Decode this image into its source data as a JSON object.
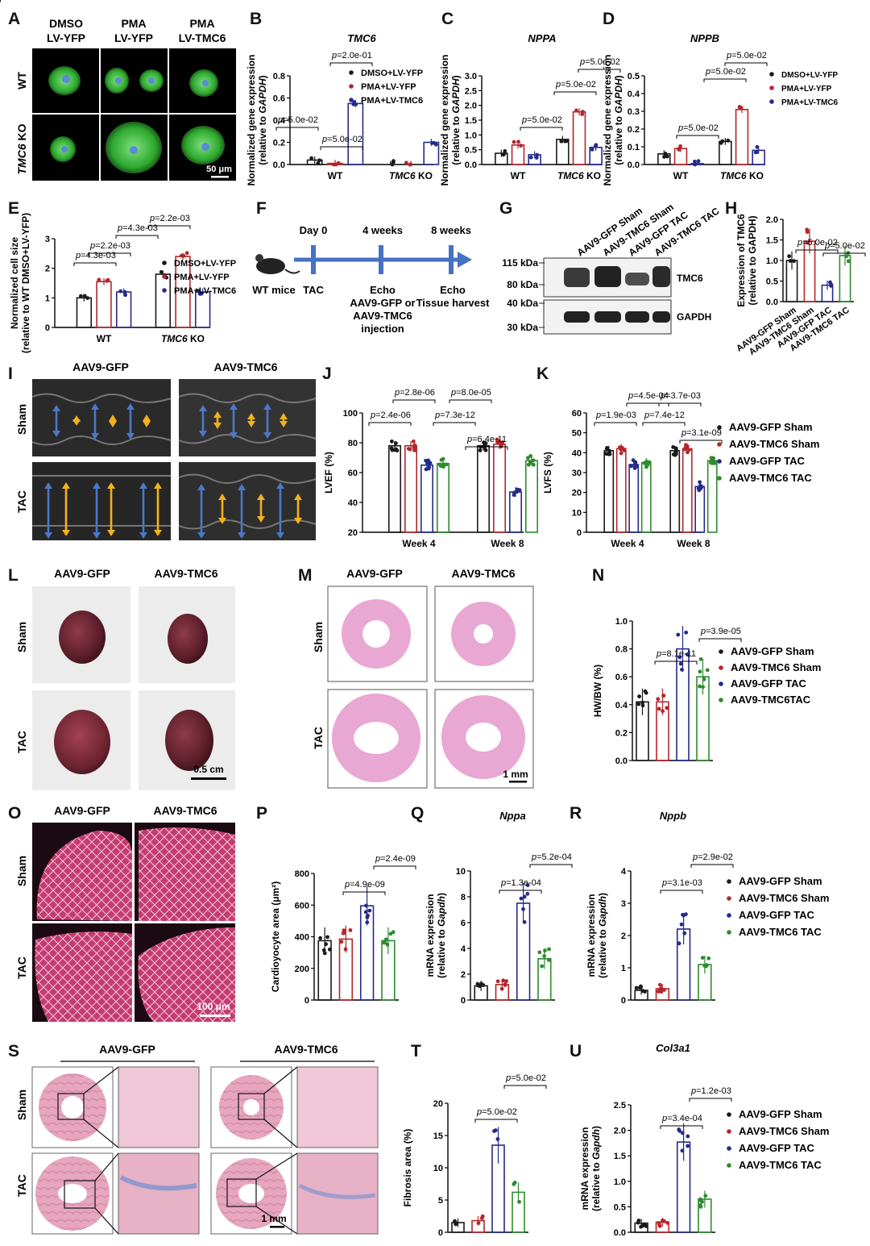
{
  "panel_letters": [
    "A",
    "B",
    "C",
    "D",
    "E",
    "F",
    "G",
    "H",
    "I",
    "J",
    "K",
    "L",
    "M",
    "N",
    "O",
    "P",
    "Q",
    "R",
    "S",
    "T",
    "U"
  ],
  "colors": {
    "black": "#1a1a1a",
    "red": "#b5262a",
    "blue": "#242a8c",
    "green": "#2e8b2e",
    "arrow_blue": "#4a78c8",
    "arrow_orange": "#f3b21a",
    "timeline": "#4672c4",
    "cell_green": "#3fb43f",
    "he_pink": "#e9a7d3",
    "wga_magenta": "#c2426f",
    "trichrome_blue": "#6f8fd0"
  },
  "panelA": {
    "cols": [
      "DMSO\nLV-YFP",
      "PMA\nLV-YFP",
      "PMA\nLV-TMC6"
    ],
    "rows": [
      "WT",
      "TMC6 KO"
    ],
    "scale": "50 μm"
  },
  "panelE_ylabel": [
    "Normalized cell size",
    "(relative to WT DMSO+LV-YFP)"
  ],
  "panelF": {
    "day0": "Day 0",
    "wk4": "4 weeks",
    "wk8": "8 weeks",
    "mice": "WT mice",
    "tac": "TAC",
    "echo1": [
      "Echo",
      "AAV9-GFP or",
      "AAV9-TMC6",
      "injection"
    ],
    "echo2": [
      "Echo",
      "Tissue harvest"
    ]
  },
  "panelG": {
    "lanes": [
      "AAV9-GFP Sham",
      "AAV9-TMC6 Sham",
      "AAV9-GFP TAC",
      "AAV9-TMC6 TAC"
    ],
    "markers": [
      "115 kDa",
      "80 kDa",
      "40 kDa",
      "30 kDa"
    ],
    "bands": [
      "TMC6",
      "GAPDH"
    ]
  },
  "panelI": {
    "cols": [
      "AAV9-GFP",
      "AAV9-TMC6"
    ],
    "rows": [
      "Sham",
      "TAC"
    ]
  },
  "panelL": {
    "cols": [
      "AAV9-GFP",
      "AAV9-TMC6"
    ],
    "rows": [
      "Sham",
      "TAC"
    ],
    "scale": "0.5 cm"
  },
  "panelM": {
    "cols": [
      "AAV9-GFP",
      "AAV9-TMC6"
    ],
    "rows": [
      "Sham",
      "TAC"
    ],
    "scale": "1 mm"
  },
  "panelO": {
    "cols": [
      "AAV9-GFP",
      "AAV9-TMC6"
    ],
    "rows": [
      "Sham",
      "TAC"
    ],
    "scale": "100 μm"
  },
  "panelS": {
    "cols": [
      "AAV9-GFP",
      "AAV9-TMC6"
    ],
    "rows": [
      "Sham",
      "TAC"
    ],
    "scale": "1 mm"
  },
  "legends": {
    "cell": [
      "DMSO+LV-YFP",
      "PMA+LV-YFP",
      "PMA+LV-TMC6"
    ],
    "mouse": [
      "AAV9-GFP Sham",
      "AAV9-TMC6 Sham",
      "AAV9-GFP TAC",
      "AAV9-TMC6 TAC"
    ],
    "mouseN": [
      "AAV9-GFP Sham",
      "AAV9-TMC6 Sham",
      "AAV9-GFP TAC",
      "AAV9-TMC6TAC"
    ]
  },
  "chart_data": [
    {
      "id": "B",
      "type": "bar",
      "title": "TMC6",
      "ylabel": [
        "Normalized gene expression",
        "(relative to GAPDH)"
      ],
      "groups": [
        "WT",
        "TMC6 KO"
      ],
      "series": [
        "DMSO+LV-YFP",
        "PMA+LV-YFP",
        "PMA+LV-TMC6"
      ],
      "values": [
        [
          0.04,
          0.01,
          0.55
        ],
        [
          0.0,
          0.0,
          0.2
        ]
      ],
      "ylim": [
        0,
        0.8
      ],
      "yticks": [
        "0.0",
        "0.2",
        "0.4",
        "0.6",
        "0.8"
      ],
      "pvalues": [
        "p=5.0e-02",
        "p=5.0e-02",
        "p=2.0e-01",
        "p=5.0e-02"
      ]
    },
    {
      "id": "C",
      "type": "bar",
      "title": "NPPA",
      "ylabel": [
        "Normalized gene expression",
        "(relative to GAPDH)"
      ],
      "groups": [
        "WT",
        "TMC6 KO"
      ],
      "series": [
        "DMSO+LV-YFP",
        "PMA+LV-YFP",
        "PMA+LV-TMC6"
      ],
      "values": [
        [
          0.38,
          0.66,
          0.33
        ],
        [
          0.85,
          1.78,
          0.58
        ]
      ],
      "ylim": [
        0,
        3.0
      ],
      "yticks": [
        "0.0",
        "0.5",
        "1.0",
        "1.5",
        "2.0",
        "2.5",
        "3.0"
      ],
      "pvalues": [
        "p=5.0e-02",
        "p=5.0e-02",
        "p=5.0e-02"
      ]
    },
    {
      "id": "D",
      "type": "bar",
      "title": "NPPB",
      "ylabel": [
        "Normalized gene expression",
        "(relative to GAPDH)"
      ],
      "groups": [
        "WT",
        "TMC6 KO"
      ],
      "series": [
        "DMSO+LV-YFP",
        "PMA+LV-YFP",
        "PMA+LV-TMC6"
      ],
      "values": [
        [
          0.06,
          0.09,
          0.005
        ],
        [
          0.13,
          0.31,
          0.08
        ]
      ],
      "ylim": [
        0,
        0.5
      ],
      "yticks": [
        "0.0",
        "0.1",
        "0.2",
        "0.3",
        "0.4",
        "0.5"
      ],
      "pvalues": [
        "p=5.0e-02",
        "p=5.0e-02",
        "p=5.0e-02"
      ]
    },
    {
      "id": "E",
      "type": "bar",
      "title": "",
      "groups": [
        "WT",
        "TMC6 KO"
      ],
      "series": [
        "DMSO+LV-YFP",
        "PMA+LV-YFP",
        "PMA+LV-TMC6"
      ],
      "values": [
        [
          1.0,
          1.55,
          1.2
        ],
        [
          1.8,
          2.4,
          1.2
        ]
      ],
      "ylim": [
        0,
        3
      ],
      "yticks": [
        "0",
        "1",
        "2",
        "3"
      ],
      "pvalues": [
        "p=4.3e-03",
        "p=2.2e-03",
        "p=4.3e-03",
        "p=2.2e-03"
      ]
    },
    {
      "id": "H",
      "type": "bar",
      "title": "",
      "ylabel": [
        "Expression of TMC6",
        "(relative to GAPDH)"
      ],
      "categories": [
        "AAV9-GFP Sham",
        "AAV9-TMC6 Sham",
        "AAV9-GFP TAC",
        "AAV9-TMC6 TAC"
      ],
      "values": [
        1.0,
        1.47,
        0.4,
        1.12
      ],
      "ylim": [
        0,
        2.0
      ],
      "yticks": [
        "0.0",
        "0.5",
        "1.0",
        "1.5",
        "2.0"
      ],
      "pvalues": [
        "p=5.0e-02",
        "p=5.0e-02"
      ]
    },
    {
      "id": "J",
      "type": "bar",
      "ylabel": "LVEF (%)",
      "groups": [
        "Week 4",
        "Week 8"
      ],
      "series": [
        "AAV9-GFP Sham",
        "AAV9-TMC6 Sham",
        "AAV9-GFP TAC",
        "AAV9-TMC6 TAC"
      ],
      "values": [
        [
          78,
          78,
          65,
          66
        ],
        [
          78,
          79,
          47,
          68
        ]
      ],
      "ylim": [
        20,
        100
      ],
      "yticks": [
        "20",
        "40",
        "60",
        "80",
        "100"
      ],
      "pvalues": [
        "p=2.8e-06",
        "p=2.4e-06",
        "p=8.0e-05",
        "p=7.3e-12",
        "p=6.4e-11"
      ]
    },
    {
      "id": "K",
      "type": "bar",
      "ylabel": "LVFS (%)",
      "groups": [
        "Week 4",
        "Week 8"
      ],
      "series": [
        "AAV9-GFP Sham",
        "AAV9-TMC6 Sham",
        "AAV9-GFP TAC",
        "AAV9-TMC6 TAC"
      ],
      "values": [
        [
          41,
          42,
          34,
          35
        ],
        [
          41,
          42,
          23,
          36
        ]
      ],
      "ylim": [
        0,
        60
      ],
      "yticks": [
        "0",
        "10",
        "20",
        "30",
        "40",
        "50",
        "60"
      ],
      "pvalues": [
        "p=4.5e-04",
        "p=1.9e-03",
        "p=3.7e-03",
        "p=7.4e-12",
        "p=3.1e-09"
      ]
    },
    {
      "id": "N",
      "type": "bar",
      "ylabel": "HW/BW (%)",
      "categories": [
        "AAV9-GFP Sham",
        "AAV9-TMC6 Sham",
        "AAV9-GFP TAC",
        "AAV9-TMC6TAC"
      ],
      "values": [
        0.42,
        0.42,
        0.8,
        0.6
      ],
      "ylim": [
        0,
        1.0
      ],
      "yticks": [
        "0.0",
        "0.2",
        "0.4",
        "0.6",
        "0.8",
        "1.0"
      ],
      "pvalues": [
        "p=8.1e-11",
        "p=3.9e-05"
      ]
    },
    {
      "id": "P",
      "type": "bar",
      "ylabel": "Cardioyocyte area (μm²)",
      "categories": [
        "AAV9-GFP Sham",
        "AAV9-TMC6 Sham",
        "AAV9-GFP TAC",
        "AAV9-TMC6 TAC"
      ],
      "values": [
        375,
        385,
        595,
        375
      ],
      "ylim": [
        0,
        800
      ],
      "yticks": [
        "0",
        "200",
        "400",
        "600",
        "800"
      ],
      "pvalues": [
        "p=4.9e-09",
        "p=2.4e-09"
      ]
    },
    {
      "id": "Q",
      "type": "bar",
      "title": "Nppa",
      "ylabel": [
        "mRNA expression",
        "(relative to Gapdh)"
      ],
      "categories": [
        "AAV9-GFP Sham",
        "AAV9-TMC6 Sham",
        "AAV9-GFP TAC",
        "AAV9-TMC6 TAC"
      ],
      "values": [
        1.1,
        1.2,
        7.5,
        3.2
      ],
      "ylim": [
        0,
        10
      ],
      "yticks": [
        "0",
        "2",
        "4",
        "6",
        "8",
        "10"
      ],
      "pvalues": [
        "p=1.3e-04",
        "p=5.2e-04"
      ]
    },
    {
      "id": "R",
      "type": "bar",
      "title": "Nppb",
      "ylabel": [
        "mRNA expression",
        "(relative to Gapdh)"
      ],
      "categories": [
        "AAV9-GFP Sham",
        "AAV9-TMC6 Sham",
        "AAV9-GFP TAC",
        "AAV9-TMC6 TAC"
      ],
      "values": [
        0.3,
        0.35,
        2.2,
        1.1
      ],
      "ylim": [
        0,
        4
      ],
      "yticks": [
        "0",
        "1",
        "2",
        "3",
        "4"
      ],
      "pvalues": [
        "p=3.1e-03",
        "p=2.9e-02"
      ]
    },
    {
      "id": "T",
      "type": "bar",
      "ylabel": "Fibrosis area (%)",
      "categories": [
        "AAV9-GFP Sham",
        "AAV9-TMC6 Sham",
        "AAV9-GFP TAC",
        "AAV9-TMC6 TAC"
      ],
      "values": [
        1.5,
        1.8,
        13.5,
        6.2
      ],
      "ylim": [
        0,
        20
      ],
      "yticks": [
        "0",
        "5",
        "10",
        "15",
        "20"
      ],
      "pvalues": [
        "p=5.0e-02",
        "p=5.0e-02"
      ]
    },
    {
      "id": "U",
      "type": "bar",
      "title": "Col3a1",
      "ylabel": [
        "mRNA expression",
        "(relative to Gapdh)"
      ],
      "categories": [
        "AAV9-GFP Sham",
        "AAV9-TMC6 Sham",
        "AAV9-GFP TAC",
        "AAV9-TMC6 TAC"
      ],
      "values": [
        0.18,
        0.2,
        1.77,
        0.65
      ],
      "ylim": [
        0,
        2.5
      ],
      "yticks": [
        "0.0",
        "0.5",
        "1.0",
        "1.5",
        "2.0",
        "2.5"
      ],
      "pvalues": [
        "p=3.4e-04",
        "p=1.2e-03"
      ]
    }
  ]
}
